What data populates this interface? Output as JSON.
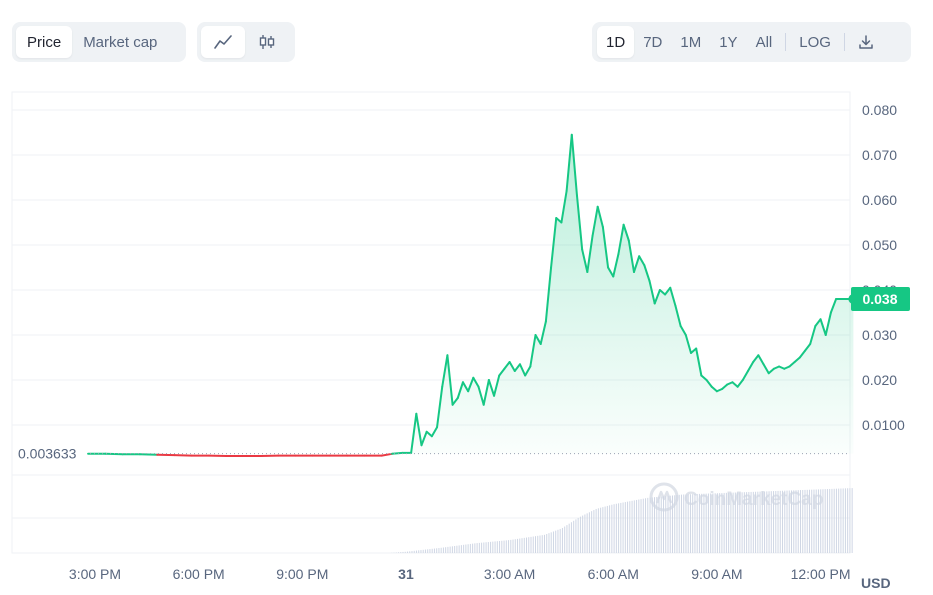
{
  "toolbar": {
    "metric_tabs": [
      {
        "label": "Price",
        "active": true
      },
      {
        "label": "Market cap",
        "active": false
      }
    ],
    "chart_type_icons": [
      {
        "icon": "line-chart-icon",
        "active": true
      },
      {
        "icon": "candlestick-icon",
        "active": false
      }
    ],
    "ranges": [
      {
        "label": "1D",
        "active": true
      },
      {
        "label": "7D",
        "active": false
      },
      {
        "label": "1M",
        "active": false
      },
      {
        "label": "1Y",
        "active": false
      },
      {
        "label": "All",
        "active": false
      }
    ],
    "log_label": "LOG",
    "download_icon": "download-icon"
  },
  "watermark": "CoinMarketCap",
  "currency": "USD",
  "colors": {
    "up": "#16c784",
    "down": "#ea3943",
    "volume": "#cfd6e4",
    "grid": "#eff2f5"
  },
  "chart_data": {
    "type": "area",
    "x_tick_labels": [
      "3:00 PM",
      "6:00 PM",
      "9:00 PM",
      "31",
      "3:00 AM",
      "6:00 AM",
      "9:00 AM",
      "12:00 PM"
    ],
    "x_ticks_hours": [
      0,
      3,
      6,
      9,
      12,
      15,
      18,
      21
    ],
    "y_ticks": [
      0.08,
      0.07,
      0.06,
      0.05,
      0.04,
      0.03,
      0.02,
      0.01
    ],
    "y_tick_labels": [
      "0.080",
      "0.070",
      "0.060",
      "0.050",
      "0.040",
      "0.030",
      "0.020",
      "0.0100"
    ],
    "ylim": [
      0,
      0.084
    ],
    "open_price": 0.003633,
    "open_price_label": "0.003633",
    "current_price": 0.038,
    "current_price_label": "0.038",
    "price": {
      "x_hours": [
        -0.2,
        0.3,
        0.8,
        1.3,
        1.8,
        2.3,
        2.8,
        3.3,
        3.8,
        4.3,
        4.8,
        5.3,
        5.8,
        6.3,
        6.8,
        7.3,
        7.8,
        8.3,
        8.6,
        8.9,
        9.15,
        9.3,
        9.45,
        9.6,
        9.75,
        9.9,
        10.05,
        10.2,
        10.35,
        10.5,
        10.65,
        10.8,
        10.95,
        11.1,
        11.25,
        11.4,
        11.55,
        11.7,
        11.85,
        12.0,
        12.15,
        12.3,
        12.45,
        12.6,
        12.75,
        12.9,
        13.05,
        13.2,
        13.35,
        13.5,
        13.65,
        13.8,
        13.95,
        14.1,
        14.25,
        14.4,
        14.55,
        14.7,
        14.85,
        15.0,
        15.15,
        15.3,
        15.45,
        15.6,
        15.75,
        15.9,
        16.05,
        16.2,
        16.35,
        16.5,
        16.65,
        16.8,
        16.95,
        17.1,
        17.25,
        17.4,
        17.55,
        17.7,
        17.85,
        18.0,
        18.15,
        18.3,
        18.45,
        18.6,
        18.75,
        18.9,
        19.05,
        19.2,
        19.35,
        19.5,
        19.65,
        19.8,
        19.95,
        20.1,
        20.25,
        20.4,
        20.55,
        20.7,
        20.85,
        21.0,
        21.15,
        21.3,
        21.45,
        21.6,
        21.75,
        21.85,
        21.95
      ],
      "values": [
        0.0036,
        0.0036,
        0.0035,
        0.0035,
        0.0034,
        0.0033,
        0.0032,
        0.0032,
        0.0031,
        0.0031,
        0.0031,
        0.0032,
        0.0032,
        0.0032,
        0.0032,
        0.0032,
        0.0032,
        0.0032,
        0.0036,
        0.0038,
        0.0038,
        0.0125,
        0.0055,
        0.0085,
        0.0075,
        0.0095,
        0.0185,
        0.0255,
        0.0145,
        0.016,
        0.0195,
        0.0175,
        0.0205,
        0.0185,
        0.0145,
        0.02,
        0.0165,
        0.021,
        0.0225,
        0.024,
        0.022,
        0.0235,
        0.021,
        0.023,
        0.03,
        0.028,
        0.033,
        0.045,
        0.056,
        0.055,
        0.062,
        0.0745,
        0.061,
        0.049,
        0.044,
        0.052,
        0.0585,
        0.054,
        0.045,
        0.043,
        0.048,
        0.0545,
        0.051,
        0.044,
        0.0475,
        0.0455,
        0.042,
        0.037,
        0.04,
        0.039,
        0.0405,
        0.0365,
        0.032,
        0.03,
        0.026,
        0.027,
        0.021,
        0.02,
        0.0185,
        0.0175,
        0.018,
        0.019,
        0.0195,
        0.0185,
        0.02,
        0.022,
        0.024,
        0.0255,
        0.0235,
        0.0215,
        0.0225,
        0.023,
        0.0225,
        0.023,
        0.024,
        0.025,
        0.0265,
        0.028,
        0.032,
        0.0335,
        0.03,
        0.035,
        0.038,
        0.038,
        0.038,
        0.038,
        0.038
      ]
    },
    "volume_relative": {
      "x_hours": [
        -0.2,
        8.5,
        9.0,
        10.0,
        11.0,
        12.0,
        13.0,
        13.5,
        14.0,
        14.5,
        15.0,
        16.0,
        17.0,
        18.0,
        19.0,
        20.0,
        21.0,
        21.95
      ],
      "values": [
        0.0,
        0.0,
        0.02,
        0.08,
        0.15,
        0.2,
        0.28,
        0.38,
        0.55,
        0.68,
        0.75,
        0.85,
        0.9,
        0.92,
        0.94,
        0.96,
        0.98,
        1.0
      ]
    }
  }
}
